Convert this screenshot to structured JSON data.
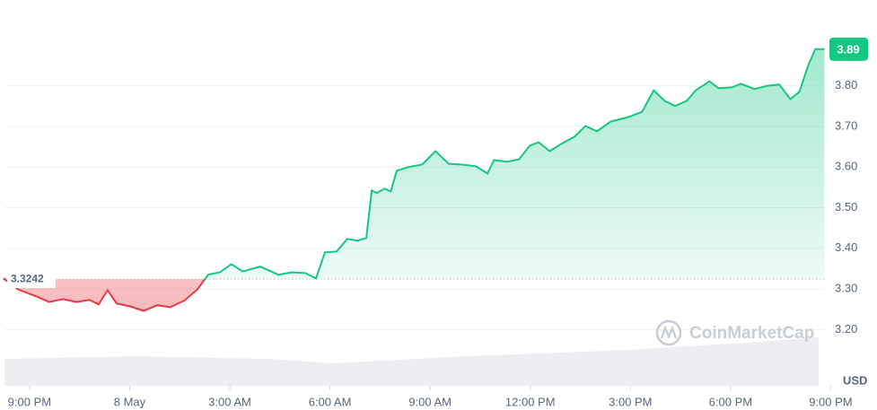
{
  "chart_data": {
    "type": "line",
    "watermark": "CoinMarketCap",
    "y_unit": "USD",
    "baseline": 3.3242,
    "up_color": "#16c784",
    "down_color": "#ea3943",
    "xlim": [
      -0.75,
      23.8
    ],
    "xticks": [
      {
        "value": 0,
        "label": "9:00 PM"
      },
      {
        "value": 3,
        "label": "8 May"
      },
      {
        "value": 6,
        "label": "3:00 AM"
      },
      {
        "value": 9,
        "label": "6:00 AM"
      },
      {
        "value": 12,
        "label": "9:00 AM"
      },
      {
        "value": 15,
        "label": "12:00 PM"
      },
      {
        "value": 18,
        "label": "3:00 PM"
      },
      {
        "value": 21,
        "label": "6:00 PM"
      },
      {
        "value": 24,
        "label": "9:00 PM"
      }
    ],
    "ylim": [
      3.15,
      4.0
    ],
    "yticks": [
      {
        "value": 3.2,
        "label": "3.20"
      },
      {
        "value": 3.3,
        "label": "3.30"
      },
      {
        "value": 3.4,
        "label": "3.40"
      },
      {
        "value": 3.5,
        "label": "3.50"
      },
      {
        "value": 3.6,
        "label": "3.60"
      },
      {
        "value": 3.7,
        "label": "3.70"
      },
      {
        "value": 3.8,
        "label": "3.80"
      }
    ],
    "grid": true,
    "x": [
      -0.75,
      -0.35,
      0.19,
      0.59,
      1.0,
      1.4,
      1.8,
      2.07,
      2.34,
      2.61,
      3.01,
      3.42,
      3.82,
      4.22,
      4.63,
      5.03,
      5.35,
      5.7,
      6.05,
      6.38,
      6.91,
      7.45,
      7.86,
      8.26,
      8.58,
      8.85,
      9.2,
      9.52,
      9.82,
      10.09,
      10.25,
      10.41,
      10.63,
      10.82,
      11.0,
      11.35,
      11.76,
      12.16,
      12.56,
      12.97,
      13.37,
      13.72,
      13.91,
      14.31,
      14.66,
      14.99,
      15.25,
      15.58,
      15.93,
      16.33,
      16.65,
      17.0,
      17.41,
      17.94,
      18.35,
      18.7,
      19.02,
      19.34,
      19.69,
      19.96,
      20.37,
      20.64,
      21.04,
      21.31,
      21.71,
      22.11,
      22.46,
      22.79,
      23.06,
      23.33,
      23.54,
      23.81
    ],
    "values": [
      3.3242,
      3.299,
      3.282,
      3.268,
      3.275,
      3.268,
      3.273,
      3.262,
      3.297,
      3.264,
      3.257,
      3.246,
      3.26,
      3.255,
      3.271,
      3.299,
      3.335,
      3.341,
      3.361,
      3.343,
      3.355,
      3.335,
      3.341,
      3.339,
      3.326,
      3.39,
      3.392,
      3.423,
      3.419,
      3.425,
      3.542,
      3.536,
      3.547,
      3.54,
      3.591,
      3.6,
      3.606,
      3.639,
      3.608,
      3.606,
      3.602,
      3.584,
      3.617,
      3.613,
      3.619,
      3.653,
      3.661,
      3.639,
      3.657,
      3.675,
      3.701,
      3.688,
      3.712,
      3.723,
      3.736,
      3.789,
      3.763,
      3.75,
      3.763,
      3.789,
      3.811,
      3.794,
      3.796,
      3.805,
      3.792,
      3.8,
      3.803,
      3.767,
      3.785,
      3.851,
      3.89,
      3.89
    ]
  }
}
